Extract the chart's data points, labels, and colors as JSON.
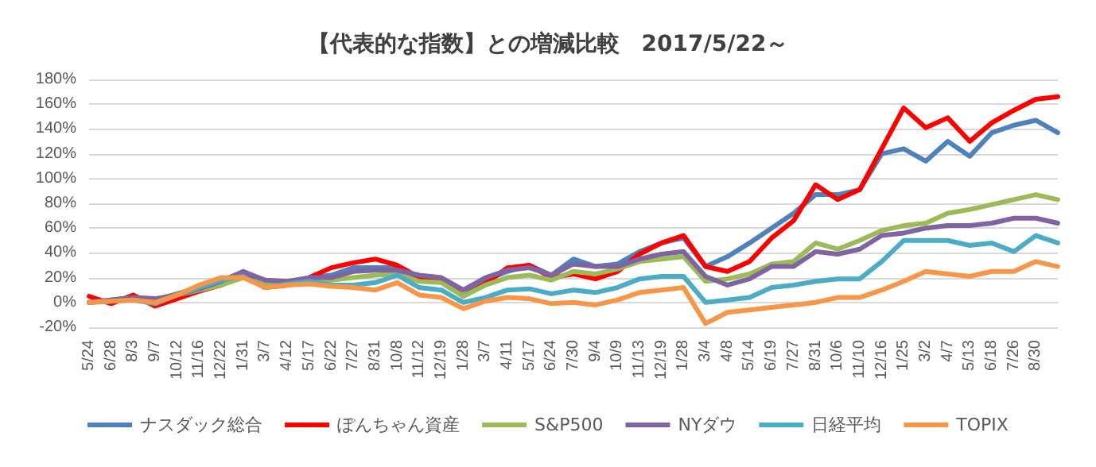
{
  "chart_data": {
    "type": "line",
    "title": "【代表的な指数】との増減比較　2017/5/22～",
    "categories": [
      "5/24",
      "6/28",
      "8/3",
      "9/7",
      "10/12",
      "11/16",
      "12/22",
      "1/31",
      "3/7",
      "4/12",
      "5/17",
      "6/22",
      "7/27",
      "8/31",
      "10/8",
      "11/12",
      "12/19",
      "1/28",
      "3/7",
      "4/11",
      "5/17",
      "6/24",
      "7/30",
      "9/4",
      "10/9",
      "11/13",
      "12/19",
      "1/28",
      "3/4",
      "4/8",
      "5/14",
      "6/19",
      "7/27",
      "8/31",
      "10/6",
      "11/10",
      "12/16",
      "1/25",
      "3/2",
      "4/7",
      "5/13",
      "6/18",
      "7/26",
      "8/30",
      null
    ],
    "series": [
      {
        "name": "ナスダック総合",
        "color": "#4f81bd",
        "values": [
          0,
          2,
          4,
          2,
          7,
          12,
          18,
          24,
          18,
          16,
          20,
          22,
          28,
          28,
          28,
          20,
          18,
          5,
          18,
          25,
          30,
          22,
          35,
          29,
          31,
          41,
          48,
          52,
          29,
          37,
          48,
          60,
          72,
          87,
          87,
          91,
          120,
          124,
          114,
          130,
          118,
          137,
          143,
          147,
          137
        ]
      },
      {
        "name": "ぽんちゃん資産",
        "color": "#ff0000",
        "values": [
          5,
          -1,
          6,
          -3,
          3,
          9,
          14,
          22,
          12,
          14,
          20,
          28,
          32,
          35,
          30,
          20,
          18,
          5,
          15,
          28,
          30,
          20,
          23,
          19,
          25,
          39,
          48,
          54,
          29,
          25,
          33,
          52,
          66,
          95,
          83,
          91,
          124,
          157,
          141,
          149,
          130,
          145,
          155,
          164,
          166
        ]
      },
      {
        "name": "S&P500",
        "color": "#9bbb59",
        "values": [
          0,
          2,
          3,
          2,
          6,
          10,
          14,
          20,
          14,
          14,
          17,
          18,
          20,
          22,
          23,
          17,
          16,
          5,
          14,
          20,
          22,
          18,
          25,
          23,
          27,
          33,
          35,
          37,
          17,
          19,
          23,
          31,
          33,
          48,
          43,
          50,
          58,
          62,
          64,
          72,
          75,
          79,
          83,
          87,
          83
        ]
      },
      {
        "name": "NYダウ",
        "color": "#8064a2",
        "values": [
          0,
          2,
          4,
          3,
          6,
          11,
          17,
          25,
          18,
          17,
          20,
          20,
          25,
          26,
          26,
          22,
          20,
          10,
          20,
          26,
          28,
          22,
          31,
          29,
          29,
          35,
          39,
          41,
          21,
          14,
          19,
          29,
          29,
          41,
          39,
          43,
          54,
          56,
          60,
          62,
          62,
          64,
          68,
          68,
          64
        ]
      },
      {
        "name": "日経平均",
        "color": "#4bacc6",
        "values": [
          0,
          1,
          2,
          -1,
          6,
          12,
          18,
          21,
          12,
          15,
          17,
          14,
          14,
          16,
          22,
          12,
          10,
          0,
          4,
          10,
          11,
          7,
          10,
          8,
          12,
          19,
          21,
          21,
          0,
          2,
          4,
          12,
          14,
          17,
          19,
          19,
          33,
          50,
          50,
          50,
          46,
          48,
          41,
          54,
          48
        ]
      },
      {
        "name": "TOPIX",
        "color": "#f79646",
        "values": [
          0,
          1,
          2,
          0,
          6,
          14,
          20,
          20,
          12,
          14,
          15,
          13,
          12,
          10,
          16,
          6,
          4,
          -5,
          1,
          4,
          3,
          -1,
          0,
          -2,
          2,
          8,
          10,
          12,
          -17,
          -8,
          -6,
          -4,
          -2,
          0,
          4,
          4,
          10,
          17,
          25,
          23,
          21,
          25,
          25,
          33,
          29
        ]
      }
    ],
    "ylim": [
      -20,
      180
    ],
    "yticks": [
      {
        "value": -20,
        "label": "-20%"
      },
      {
        "value": 0,
        "label": "0%"
      },
      {
        "value": 20,
        "label": "20%"
      },
      {
        "value": 40,
        "label": "40%"
      },
      {
        "value": 60,
        "label": "60%"
      },
      {
        "value": 80,
        "label": "80%"
      },
      {
        "value": 100,
        "label": "100%"
      },
      {
        "value": 120,
        "label": "120%"
      },
      {
        "value": 140,
        "label": "140%"
      },
      {
        "value": 160,
        "label": "160%"
      },
      {
        "value": 180,
        "label": "180%"
      }
    ],
    "grid": "y",
    "legend": "bottom",
    "marker": "none",
    "line_style": "solid"
  }
}
